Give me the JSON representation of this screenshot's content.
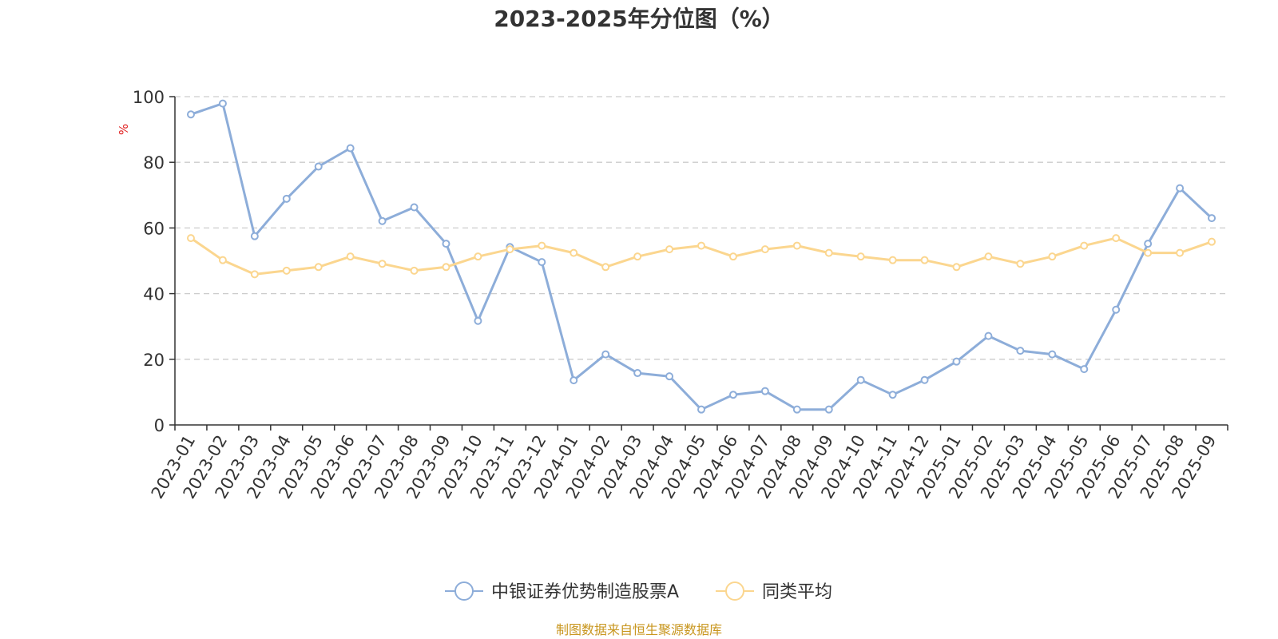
{
  "chart_data": {
    "type": "line",
    "title": "2023-2025年分位图（%）",
    "ylabel": "%",
    "ylim": [
      0,
      100
    ],
    "yticks": [
      0,
      20,
      40,
      60,
      80,
      100
    ],
    "grid": true,
    "legend_position": "bottom",
    "categories": [
      "2023-01",
      "2023-02",
      "2023-03",
      "2023-04",
      "2023-05",
      "2023-06",
      "2023-07",
      "2023-08",
      "2023-09",
      "2023-10",
      "2023-11",
      "2023-12",
      "2024-01",
      "2024-02",
      "2024-03",
      "2024-04",
      "2024-05",
      "2024-06",
      "2024-07",
      "2024-08",
      "2024-09",
      "2024-10",
      "2024-11",
      "2024-12",
      "2025-01",
      "2025-02",
      "2025-03",
      "2025-04",
      "2025-05",
      "2025-06",
      "2025-07",
      "2025-08",
      "2025-09"
    ],
    "series": [
      {
        "name": "中银证券优势制造股票A",
        "color": "#8dadd9",
        "values": [
          94.6,
          97.9,
          57.5,
          68.9,
          78.7,
          84.3,
          62.1,
          66.3,
          55.2,
          31.7,
          54.2,
          49.6,
          13.6,
          21.5,
          15.8,
          14.8,
          4.7,
          9.2,
          10.3,
          4.7,
          4.7,
          13.7,
          9.2,
          13.7,
          19.3,
          27.1,
          22.6,
          21.5,
          17.0,
          35.1,
          55.2,
          72.1,
          63.0
        ]
      },
      {
        "name": "同类平均",
        "color": "#fbd68f",
        "values": [
          56.9,
          50.2,
          45.9,
          47.0,
          48.1,
          51.3,
          49.1,
          47.0,
          48.1,
          51.3,
          53.5,
          54.6,
          52.4,
          48.1,
          51.3,
          53.5,
          54.6,
          51.3,
          53.5,
          54.6,
          52.4,
          51.3,
          50.2,
          50.2,
          48.1,
          51.3,
          49.1,
          51.3,
          54.6,
          56.9,
          52.4,
          52.4,
          55.8
        ]
      }
    ]
  },
  "footer": {
    "source": "制图数据来自恒生聚源数据库",
    "source_color": "#c8961e"
  },
  "axis": {
    "unit_color": "#e02020"
  }
}
